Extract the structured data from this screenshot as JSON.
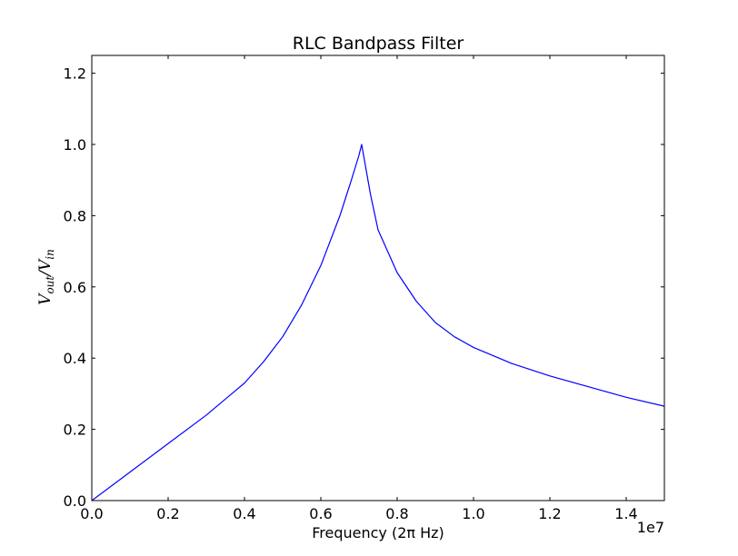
{
  "chart_data": {
    "type": "line",
    "title": "RLC Bandpass Filter",
    "xlabel": "Frequency (2π Hz)",
    "ylabel": "V_out/V_in",
    "ylabel_parts": {
      "base1": "V",
      "sub1": "out",
      "slash": "/",
      "base2": "V",
      "sub2": "in"
    },
    "x_offset_label": "1e7",
    "xlim": [
      0,
      15000000
    ],
    "ylim": [
      0,
      1.25
    ],
    "x_ticks": [
      0,
      2000000,
      4000000,
      6000000,
      8000000,
      10000000,
      12000000,
      14000000
    ],
    "x_tick_labels": [
      "0.0",
      "0.2",
      "0.4",
      "0.6",
      "0.8",
      "1.0",
      "1.2",
      "1.4"
    ],
    "y_ticks": [
      0,
      0.2,
      0.4,
      0.6,
      0.8,
      1.0,
      1.2
    ],
    "y_tick_labels": [
      "0.0",
      "0.2",
      "0.4",
      "0.6",
      "0.8",
      "1.0",
      "1.2"
    ],
    "grid": false,
    "legend": "none",
    "series": [
      {
        "color": "#0000ff",
        "x": [
          0,
          1000000,
          2000000,
          3000000,
          4000000,
          4500000,
          5000000,
          5500000,
          6000000,
          6500000,
          6800000,
          7000000,
          7070000,
          7300000,
          7500000,
          8000000,
          8500000,
          9000000,
          9500000,
          10000000,
          11000000,
          12000000,
          13000000,
          14000000,
          15000000
        ],
        "y": [
          0,
          0.08,
          0.16,
          0.24,
          0.33,
          0.39,
          0.46,
          0.55,
          0.66,
          0.8,
          0.9,
          0.97,
          1.0,
          0.86,
          0.76,
          0.64,
          0.56,
          0.5,
          0.46,
          0.43,
          0.385,
          0.35,
          0.32,
          0.29,
          0.265
        ]
      }
    ]
  }
}
